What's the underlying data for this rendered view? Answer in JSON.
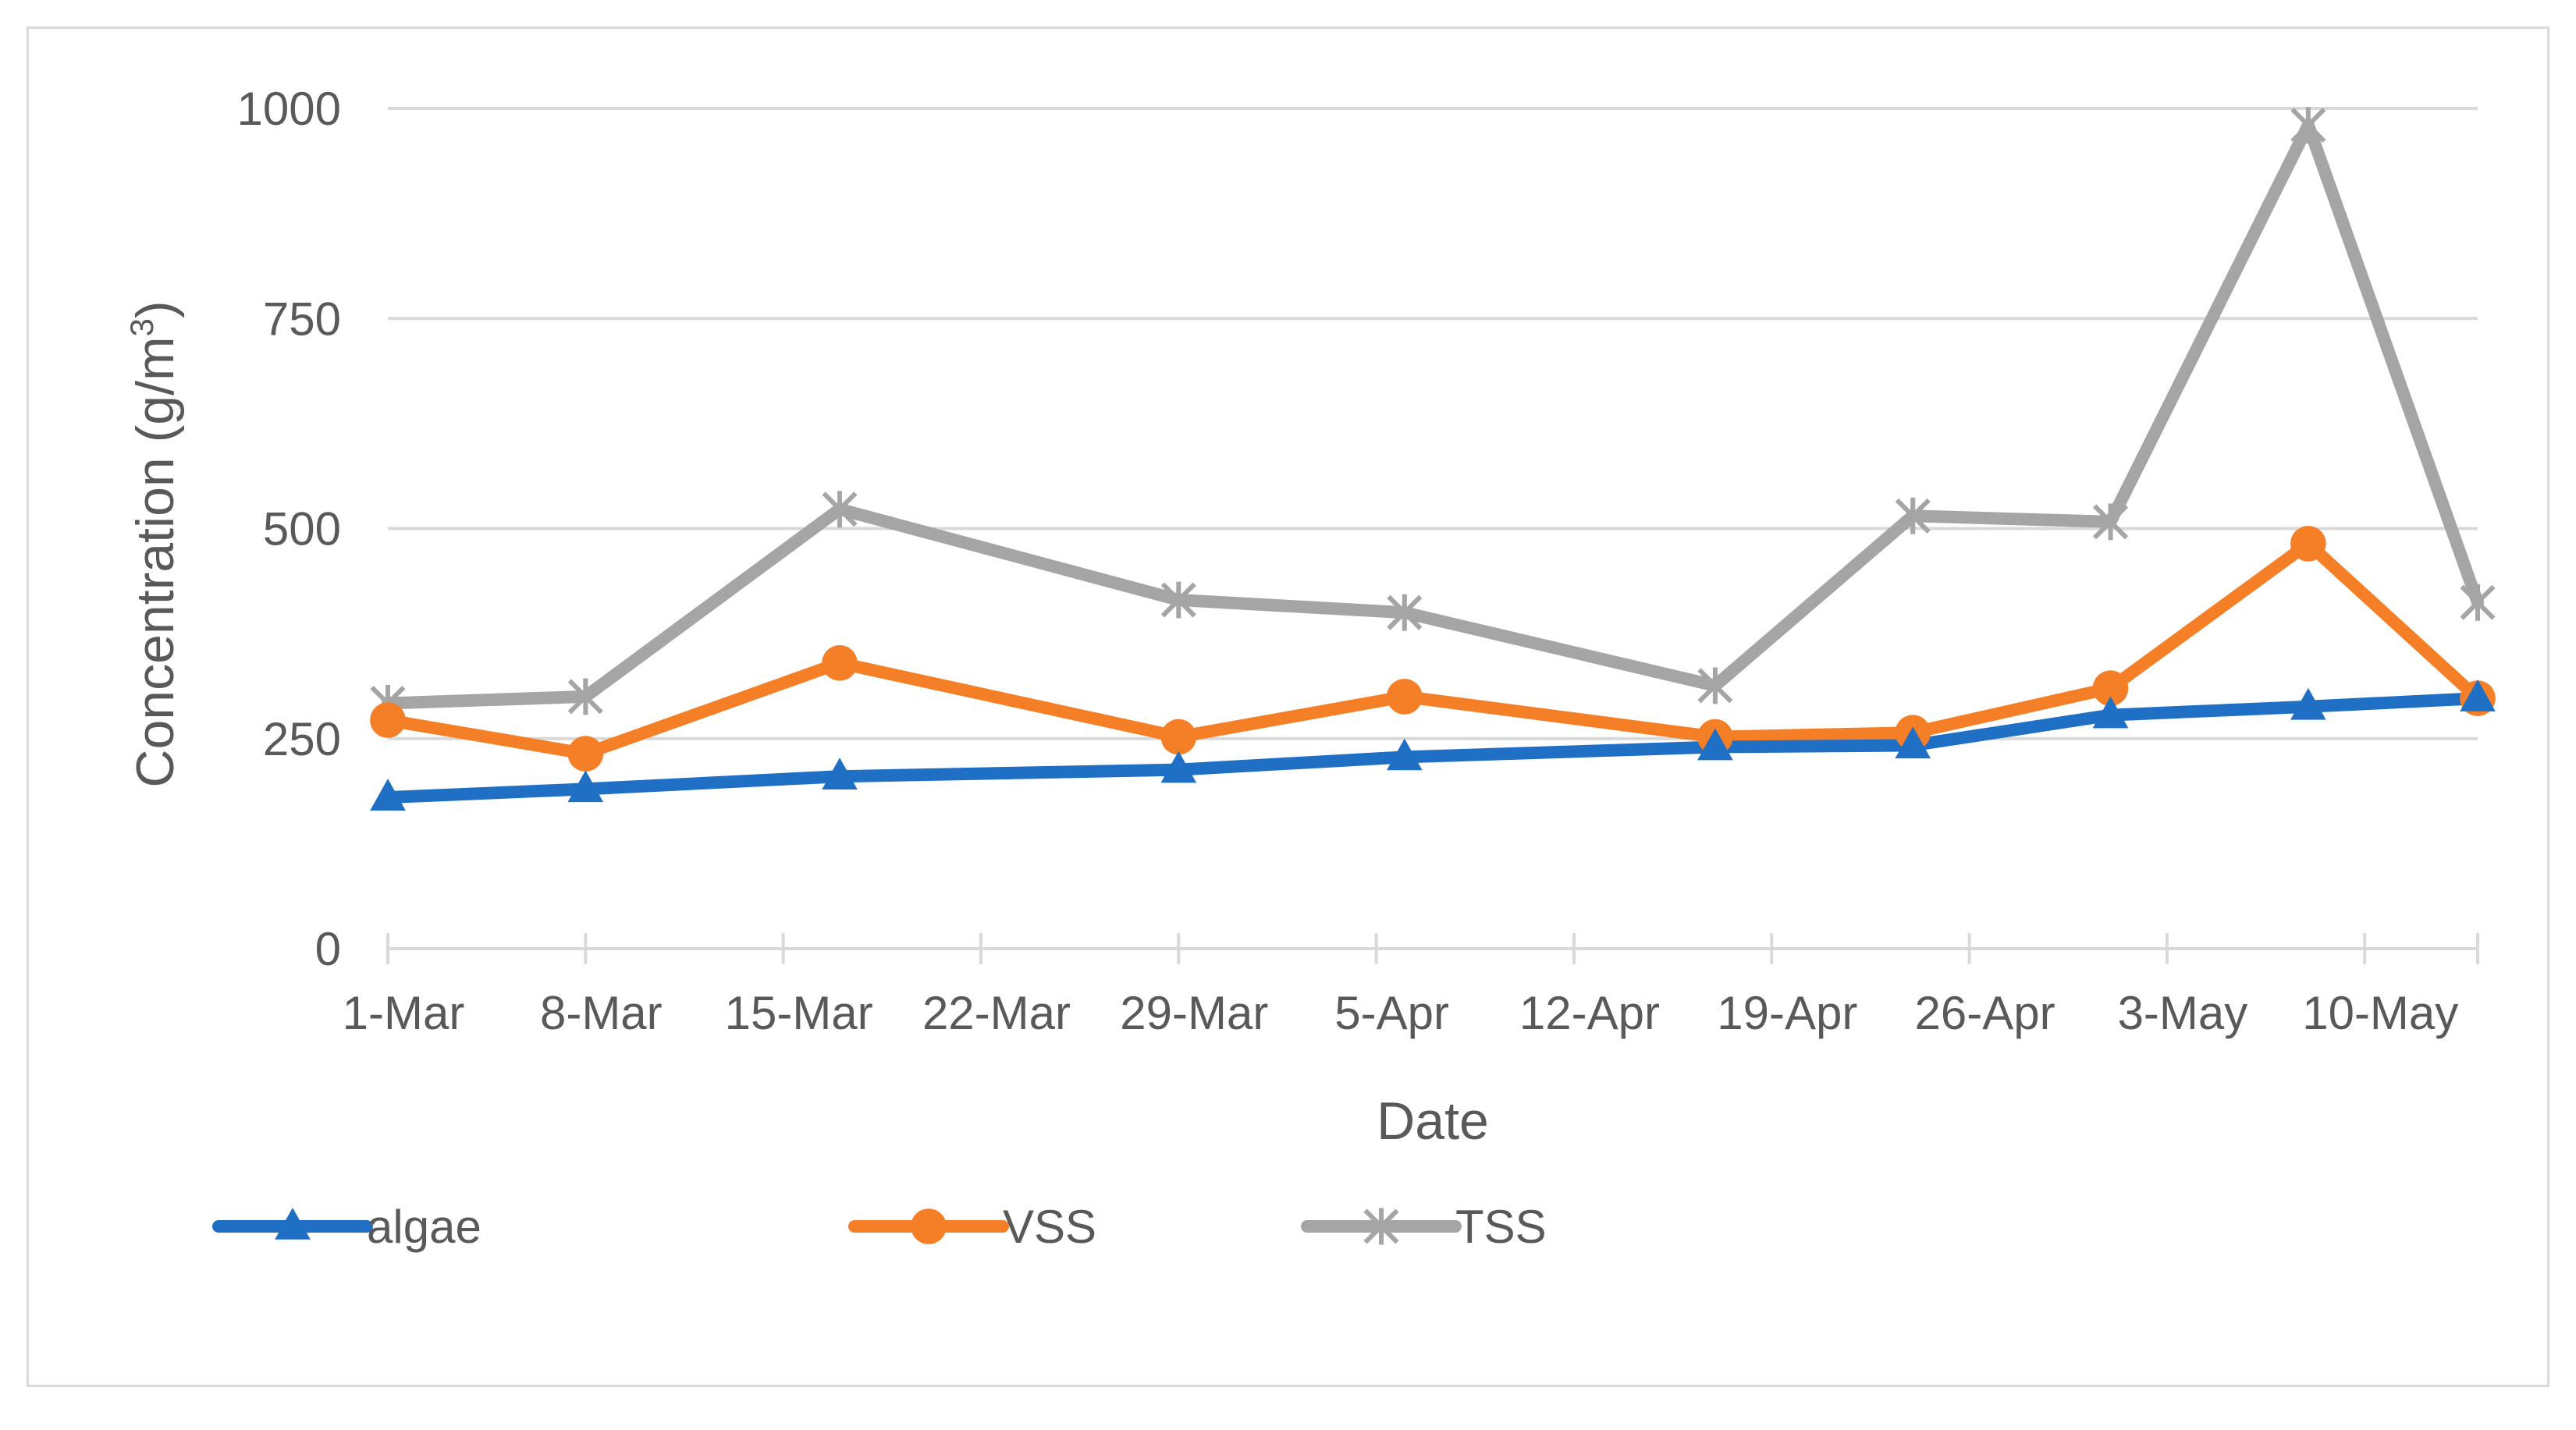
{
  "chart_data": {
    "type": "line",
    "xlabel": "Date",
    "ylabel": "Concentration (g/m",
    "ylabel_sup": "3",
    "ylabel_end": ")",
    "ylim": [
      0,
      1000
    ],
    "yticks": [
      0,
      250,
      500,
      750,
      1000
    ],
    "x_axis_type": "date",
    "xlim": [
      "2023-03-01",
      "2023-05-14"
    ],
    "xticks": [
      {
        "date": "2023-03-01",
        "label": "1-Mar"
      },
      {
        "date": "2023-03-08",
        "label": "8-Mar"
      },
      {
        "date": "2023-03-15",
        "label": "15-Mar"
      },
      {
        "date": "2023-03-22",
        "label": "22-Mar"
      },
      {
        "date": "2023-03-29",
        "label": "29-Mar"
      },
      {
        "date": "2023-04-05",
        "label": "5-Apr"
      },
      {
        "date": "2023-04-12",
        "label": "12-Apr"
      },
      {
        "date": "2023-04-19",
        "label": "19-Apr"
      },
      {
        "date": "2023-04-26",
        "label": "26-Apr"
      },
      {
        "date": "2023-05-03",
        "label": "3-May"
      },
      {
        "date": "2023-05-10",
        "label": "10-May"
      }
    ],
    "x": [
      "2023-03-01",
      "2023-03-08",
      "2023-03-17",
      "2023-03-29",
      "2023-04-06",
      "2023-04-17",
      "2023-04-24",
      "2023-05-01",
      "2023-05-08",
      "2023-05-14"
    ],
    "series": [
      {
        "name": "algae",
        "color": "#1f6fc5",
        "marker": "triangle",
        "values": [
          180,
          190,
          205,
          213,
          228,
          240,
          242,
          278,
          288,
          298
        ]
      },
      {
        "name": "VSS",
        "color": "#f57f27",
        "marker": "circle",
        "values": [
          272,
          232,
          340,
          252,
          300,
          252,
          257,
          310,
          482,
          298
        ]
      },
      {
        "name": "TSS",
        "color": "#a5a5a5",
        "marker": "star",
        "values": [
          292,
          300,
          523,
          415,
          400,
          313,
          515,
          508,
          980,
          412
        ]
      }
    ],
    "grid": true,
    "legend_position": "bottom-left"
  }
}
